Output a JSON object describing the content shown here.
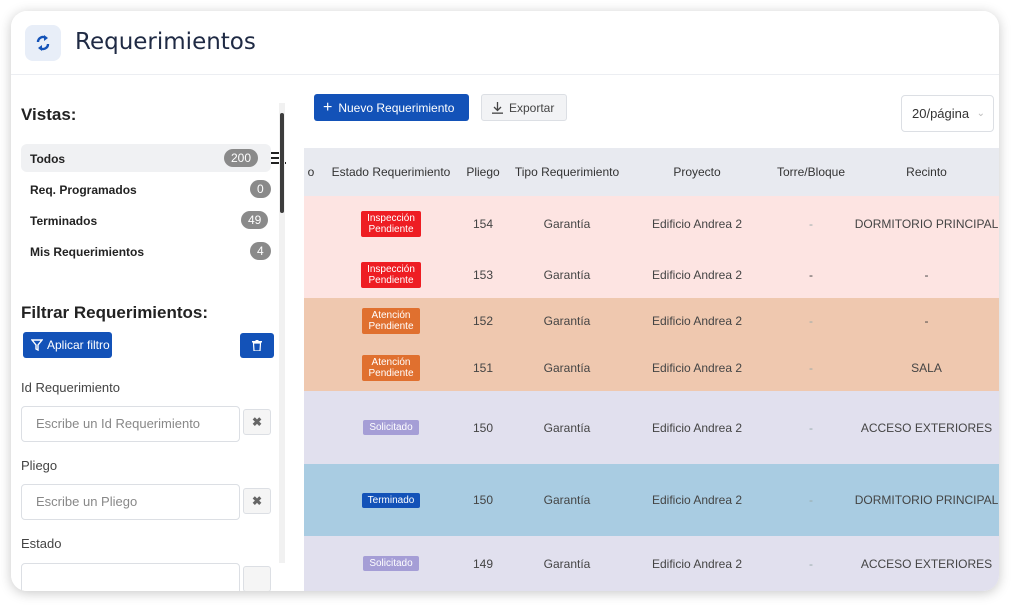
{
  "app": {
    "title": "Requerimientos",
    "logo_icon": "refresh-arrows-icon"
  },
  "sidebar": {
    "views_title": "Vistas:",
    "views": [
      {
        "label": "Todos",
        "count": "200",
        "active": true
      },
      {
        "label": "Req. Programados",
        "count": "0",
        "active": false
      },
      {
        "label": "Terminados",
        "count": "49",
        "active": false
      },
      {
        "label": "Mis Requerimientos",
        "count": "4",
        "active": false
      }
    ],
    "filter_title": "Filtrar Requerimientos:",
    "apply_filter_label": "Aplicar filtro",
    "fields": [
      {
        "label": "Id Requerimiento",
        "placeholder": "Escribe un Id Requerimiento"
      },
      {
        "label": "Pliego",
        "placeholder": "Escribe un Pliego"
      },
      {
        "label": "Estado",
        "placeholder": ""
      }
    ]
  },
  "toolbar": {
    "new_label": "Nuevo Requerimiento",
    "export_label": "Exportar",
    "per_page": "20/página"
  },
  "table": {
    "first_col_fragment": "o",
    "columns": [
      "Estado Requerimiento",
      "Pliego",
      "Tipo Requerimiento",
      "Proyecto",
      "Torre/Bloque",
      "Recinto"
    ],
    "rows": [
      {
        "estado": [
          "Inspección",
          "Pendiente"
        ],
        "pliego": "154",
        "tipo": "Garantía",
        "proyecto": "Edificio Andrea 2",
        "torre": "-",
        "recinto": "DORMITORIO PRINCIPAL",
        "row_bg": "#fde4e2",
        "badge_bg": "#ee1d23"
      },
      {
        "estado": [
          "Inspección",
          "Pendiente"
        ],
        "pliego": "153",
        "tipo": "Garantía",
        "proyecto": "Edificio Andrea 2",
        "torre": "-",
        "recinto": "-",
        "row_bg": "#fde4e2",
        "badge_bg": "#ee1d23"
      },
      {
        "estado": [
          "Atención",
          "Pendiente"
        ],
        "pliego": "152",
        "tipo": "Garantía",
        "proyecto": "Edificio Andrea 2",
        "torre": "-",
        "recinto": "-",
        "row_bg": "#efc8af",
        "badge_bg": "#e0702f"
      },
      {
        "estado": [
          "Atención",
          "Pendiente"
        ],
        "pliego": "151",
        "tipo": "Garantía",
        "proyecto": "Edificio Andrea 2",
        "torre": "-",
        "recinto": "SALA",
        "row_bg": "#efc8af",
        "badge_bg": "#e0702f"
      },
      {
        "estado": [
          "Solicitado"
        ],
        "pliego": "150",
        "tipo": "Garantía",
        "proyecto": "Edificio Andrea 2",
        "torre": "-",
        "recinto": "ACCESO EXTERIORES",
        "row_bg": "#e1e0ee",
        "badge_bg": "#a59ed6"
      },
      {
        "estado": [
          "Terminado"
        ],
        "pliego": "150",
        "tipo": "Garantía",
        "proyecto": "Edificio Andrea 2",
        "torre": "-",
        "recinto": "DORMITORIO PRINCIPAL",
        "row_bg": "#a9cce2",
        "badge_bg": "#1352b8"
      },
      {
        "estado": [
          "Solicitado"
        ],
        "pliego": "149",
        "tipo": "Garantía",
        "proyecto": "Edificio Andrea 2",
        "torre": "-",
        "recinto": "ACCESO EXTERIORES",
        "row_bg": "#e1e0ee",
        "badge_bg": "#a59ed6"
      }
    ]
  }
}
